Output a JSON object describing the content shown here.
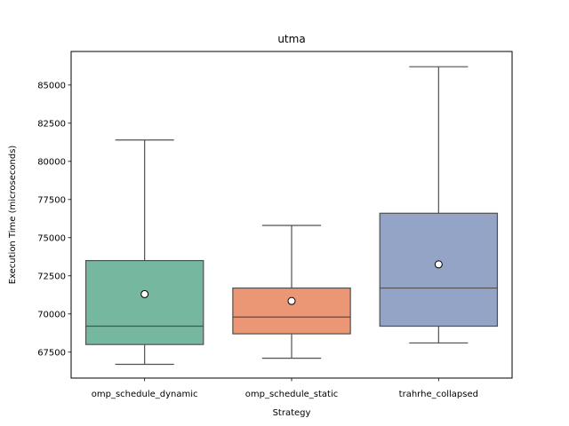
{
  "chart_data": {
    "type": "box",
    "title": "utma",
    "xlabel": "Strategy",
    "ylabel": "Execution Time (microseconds)",
    "ylim": [
      65800,
      87200
    ],
    "yticks": [
      67500,
      70000,
      72500,
      75000,
      77500,
      80000,
      82500,
      85000
    ],
    "ytick_labels": [
      "67500",
      "70000",
      "72500",
      "75000",
      "77500",
      "80000",
      "82500",
      "85000"
    ],
    "grid": false,
    "categories": [
      "omp_schedule_dynamic",
      "omp_schedule_static",
      "trahrhe_collapsed"
    ],
    "boxes": [
      {
        "category": "omp_schedule_dynamic",
        "whisker_low": 66700,
        "q1": 68000,
        "median": 69200,
        "q3": 73500,
        "whisker_high": 81400,
        "mean": 71300,
        "color": "#76b7a0"
      },
      {
        "category": "omp_schedule_static",
        "whisker_low": 67100,
        "q1": 68700,
        "median": 69800,
        "q3": 71700,
        "whisker_high": 75800,
        "mean": 70850,
        "color": "#eb9674"
      },
      {
        "category": "trahrhe_collapsed",
        "whisker_low": 68100,
        "q1": 69200,
        "median": 71700,
        "q3": 76600,
        "whisker_high": 86200,
        "mean": 73250,
        "color": "#93a4c6"
      }
    ]
  }
}
